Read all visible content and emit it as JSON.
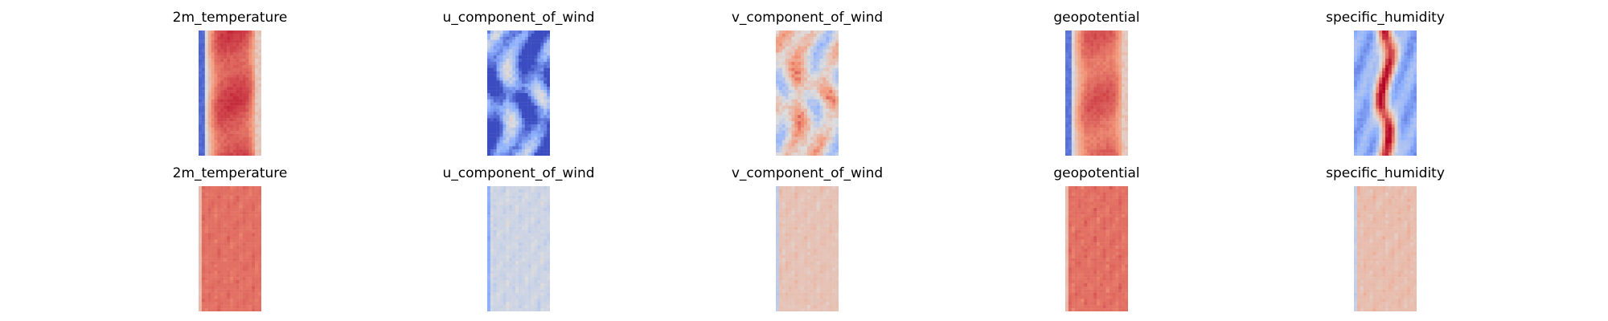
{
  "chart_data": {
    "type": "heatmap",
    "colormap": "coolwarm",
    "axes": "off",
    "rows": [
      {
        "panels": [
          {
            "title": "2m_temperature",
            "pattern": "band",
            "params": {
              "edge": 0.05,
              "center": 0.92,
              "dark_left": true
            }
          },
          {
            "title": "u_component_of_wind",
            "pattern": "swirl",
            "params": {
              "bias": -0.35,
              "amp": 0.35
            }
          },
          {
            "title": "v_component_of_wind",
            "pattern": "swirl",
            "params": {
              "bias": 0.05,
              "amp": 0.25
            }
          },
          {
            "title": "geopotential",
            "pattern": "band",
            "params": {
              "edge": 0.08,
              "center": 0.88,
              "dark_left": true
            }
          },
          {
            "title": "specific_humidity",
            "pattern": "streak",
            "params": {
              "edge": 0.1,
              "center": 0.8
            }
          }
        ]
      },
      {
        "panels": [
          {
            "title": "2m_temperature",
            "pattern": "flat",
            "params": {
              "base": 0.82,
              "amp": 0.05
            }
          },
          {
            "title": "u_component_of_wind",
            "pattern": "flat",
            "params": {
              "base": 0.45,
              "amp": 0.1
            }
          },
          {
            "title": "v_component_of_wind",
            "pattern": "flat",
            "params": {
              "base": 0.6,
              "amp": 0.08
            }
          },
          {
            "title": "geopotential",
            "pattern": "flat",
            "params": {
              "base": 0.82,
              "amp": 0.06
            }
          },
          {
            "title": "specific_humidity",
            "pattern": "flat",
            "params": {
              "base": 0.62,
              "amp": 0.09
            }
          }
        ]
      }
    ]
  }
}
